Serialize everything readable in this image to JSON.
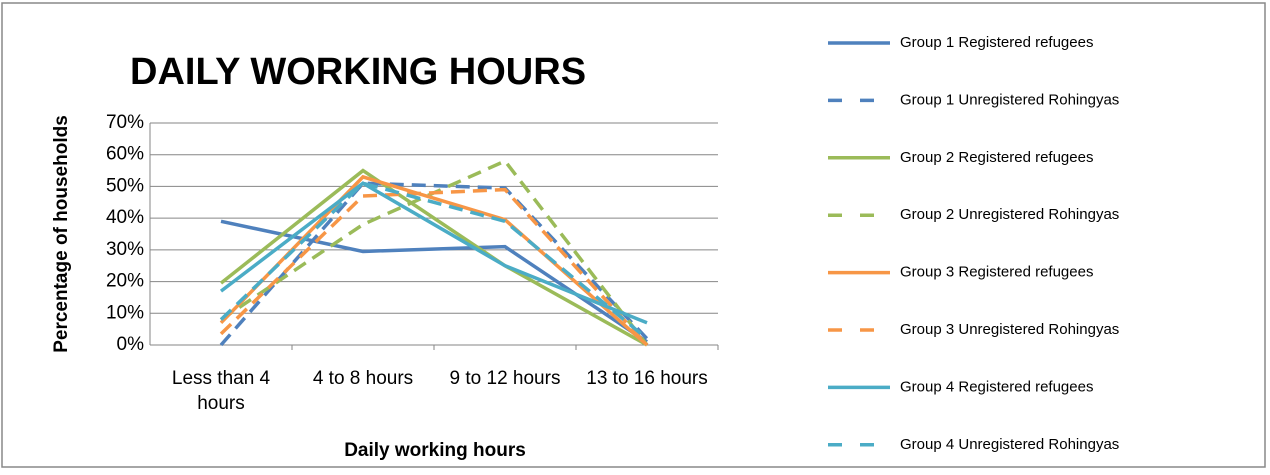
{
  "chart_data": {
    "type": "line",
    "title": "DAILY WORKING HOURS",
    "x_label": "Daily working hours",
    "y_label": "Percentage of households",
    "categories": [
      "Less than 4 hours",
      "4 to 8 hours",
      "9 to 12 hours",
      "13 to 16 hours"
    ],
    "ylim": [
      0,
      70
    ],
    "yticks": [
      {
        "value": 0,
        "label": "0%"
      },
      {
        "value": 10,
        "label": "10%"
      },
      {
        "value": 20,
        "label": "20%"
      },
      {
        "value": 30,
        "label": "30%"
      },
      {
        "value": 40,
        "label": "40%"
      },
      {
        "value": 50,
        "label": "50%"
      },
      {
        "value": 60,
        "label": "60%"
      },
      {
        "value": 70,
        "label": "70%"
      }
    ],
    "grid": true,
    "legend": "right",
    "series": [
      {
        "name": "Group 1 Registered refugees",
        "color": "#4f81bd",
        "dashed": false,
        "values": [
          39,
          29.5,
          31,
          1
        ]
      },
      {
        "name": "Group 1 Unregistered Rohingyas",
        "color": "#4f81bd",
        "dashed": true,
        "values": [
          0,
          51,
          49.5,
          2
        ]
      },
      {
        "name": "Group 2 Registered refugees",
        "color": "#9bbb59",
        "dashed": false,
        "values": [
          19.5,
          55,
          25,
          0
        ]
      },
      {
        "name": "Group 2 Unregistered Rohingyas",
        "color": "#9bbb59",
        "dashed": true,
        "values": [
          8,
          38,
          58,
          0
        ]
      },
      {
        "name": "Group 3 Registered refugees",
        "color": "#f79646",
        "dashed": false,
        "values": [
          7,
          53,
          39.5,
          0
        ]
      },
      {
        "name": "Group 3 Unregistered Rohingyas",
        "color": "#f79646",
        "dashed": true,
        "values": [
          3.5,
          47,
          49,
          0
        ]
      },
      {
        "name": "Group 4 Registered refugees",
        "color": "#4bacc6",
        "dashed": false,
        "values": [
          17,
          51,
          25,
          7
        ]
      },
      {
        "name": "Group 4 Unregistered Rohingyas",
        "color": "#4bacc6",
        "dashed": true,
        "values": [
          8,
          51,
          39,
          2
        ]
      }
    ]
  }
}
